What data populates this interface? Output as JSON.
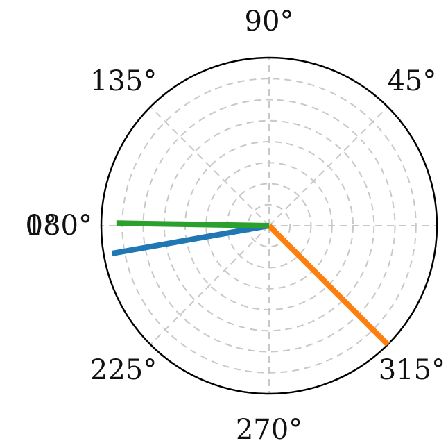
{
  "chart_data": {
    "type": "line",
    "projection": "polar",
    "title": "",
    "grid": true,
    "angle_tick_labels": [
      {
        "angle": 0,
        "label": "0°"
      },
      {
        "angle": 45,
        "label": "45°"
      },
      {
        "angle": 90,
        "label": "90°"
      },
      {
        "angle": 135,
        "label": "135°"
      },
      {
        "angle": 180,
        "label": "180°"
      },
      {
        "angle": 225,
        "label": "225°"
      },
      {
        "angle": 270,
        "label": "270°"
      },
      {
        "angle": 315,
        "label": "315°"
      }
    ],
    "radial_gridlines": [
      0.125,
      0.25,
      0.375,
      0.5,
      0.625,
      0.75,
      0.875,
      1.0
    ],
    "rlim": [
      0,
      1
    ],
    "series": [
      {
        "color": "#1f77b4",
        "angle_deg": 190,
        "r": 0.95
      },
      {
        "color": "#ff7f0e",
        "angle_deg": 315,
        "r": 1.0
      },
      {
        "color": "#2ca02c",
        "angle_deg": 179,
        "r": 0.91
      }
    ]
  }
}
